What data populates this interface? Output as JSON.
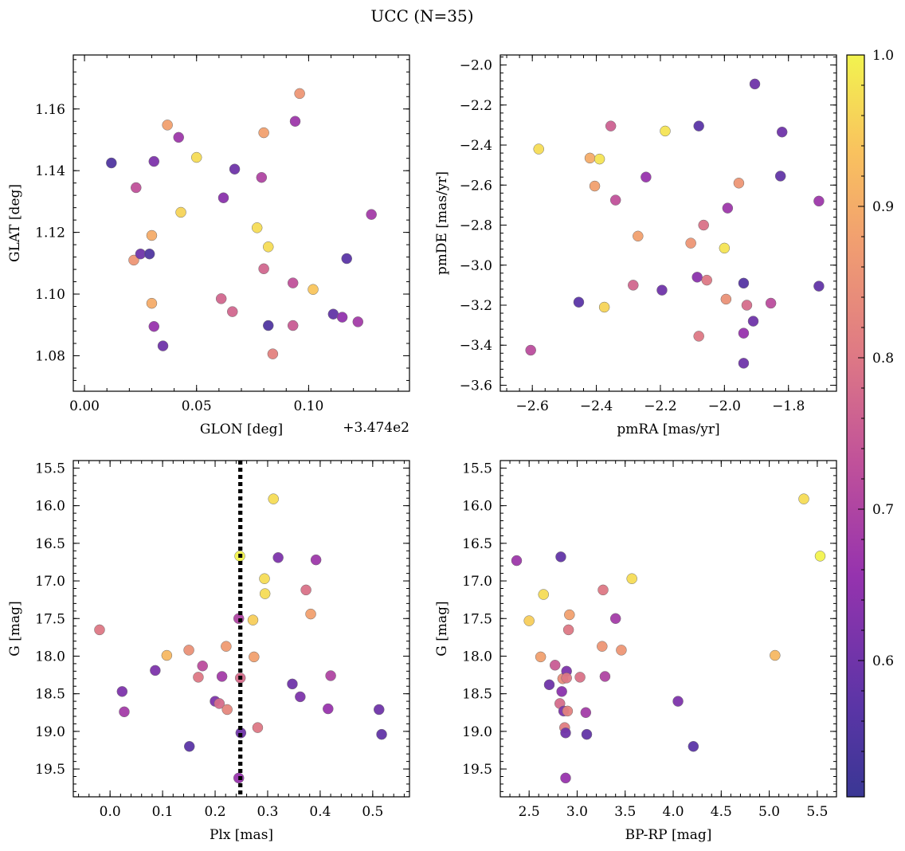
{
  "figure": {
    "suptitle": "UCC (N=35)"
  },
  "colorbar": {
    "cmap": "plasma",
    "range": [
      0.51,
      1.0
    ],
    "ticks": [
      0.6,
      0.7,
      0.8,
      0.9,
      1.0
    ],
    "tick_labels": [
      "0.6",
      "0.7",
      "0.8",
      "0.9",
      "1.0"
    ]
  },
  "chart_data": [
    {
      "type": "scatter",
      "panel": "top-left",
      "xlabel": "GLON [deg]",
      "ylabel": "GLAT [deg]",
      "x_offset_label": "+3.474e2",
      "xlim": [
        -0.005,
        0.145
      ],
      "ylim": [
        1.0685,
        1.1775
      ],
      "xticks": [
        0.0,
        0.05,
        0.1
      ],
      "xtick_labels": [
        "0.00",
        "0.05",
        "0.10"
      ],
      "yticks": [
        1.08,
        1.1,
        1.12,
        1.14,
        1.16
      ],
      "ytick_labels": [
        "1.08",
        "1.10",
        "1.12",
        "1.14",
        "1.16"
      ],
      "points": [
        {
          "x": 0.012,
          "y": 1.1425,
          "c": 0.55
        },
        {
          "x": 0.022,
          "y": 1.111,
          "c": 0.86
        },
        {
          "x": 0.023,
          "y": 1.1345,
          "c": 0.73
        },
        {
          "x": 0.025,
          "y": 1.113,
          "c": 0.6
        },
        {
          "x": 0.029,
          "y": 1.113,
          "c": 0.55
        },
        {
          "x": 0.03,
          "y": 1.119,
          "c": 0.9
        },
        {
          "x": 0.03,
          "y": 1.097,
          "c": 0.9
        },
        {
          "x": 0.031,
          "y": 1.143,
          "c": 0.62
        },
        {
          "x": 0.031,
          "y": 1.0895,
          "c": 0.66
        },
        {
          "x": 0.035,
          "y": 1.0832,
          "c": 0.6
        },
        {
          "x": 0.037,
          "y": 1.1548,
          "c": 0.88
        },
        {
          "x": 0.042,
          "y": 1.1508,
          "c": 0.67
        },
        {
          "x": 0.043,
          "y": 1.1265,
          "c": 0.96
        },
        {
          "x": 0.05,
          "y": 1.1443,
          "c": 0.97
        },
        {
          "x": 0.061,
          "y": 1.0985,
          "c": 0.77
        },
        {
          "x": 0.062,
          "y": 1.1312,
          "c": 0.64
        },
        {
          "x": 0.066,
          "y": 1.0943,
          "c": 0.77
        },
        {
          "x": 0.067,
          "y": 1.1405,
          "c": 0.6
        },
        {
          "x": 0.077,
          "y": 1.1215,
          "c": 0.97
        },
        {
          "x": 0.079,
          "y": 1.1378,
          "c": 0.7
        },
        {
          "x": 0.08,
          "y": 1.1523,
          "c": 0.88
        },
        {
          "x": 0.08,
          "y": 1.1082,
          "c": 0.77
        },
        {
          "x": 0.082,
          "y": 1.1153,
          "c": 0.97
        },
        {
          "x": 0.082,
          "y": 1.0898,
          "c": 0.55
        },
        {
          "x": 0.084,
          "y": 1.0806,
          "c": 0.82
        },
        {
          "x": 0.093,
          "y": 1.1036,
          "c": 0.73
        },
        {
          "x": 0.093,
          "y": 1.0898,
          "c": 0.75
        },
        {
          "x": 0.094,
          "y": 1.156,
          "c": 0.67
        },
        {
          "x": 0.096,
          "y": 1.165,
          "c": 0.86
        },
        {
          "x": 0.102,
          "y": 1.1015,
          "c": 0.94
        },
        {
          "x": 0.111,
          "y": 1.0935,
          "c": 0.58
        },
        {
          "x": 0.115,
          "y": 1.0925,
          "c": 0.65
        },
        {
          "x": 0.117,
          "y": 1.1115,
          "c": 0.57
        },
        {
          "x": 0.122,
          "y": 1.091,
          "c": 0.68
        },
        {
          "x": 0.128,
          "y": 1.1258,
          "c": 0.68
        }
      ]
    },
    {
      "type": "scatter",
      "panel": "top-right",
      "xlabel": "pmRA [mas/yr]",
      "ylabel": "pmDE [mas/yr]",
      "xlim": [
        -2.7,
        -1.65
      ],
      "ylim": [
        -3.63,
        -1.95
      ],
      "xticks": [
        -2.6,
        -2.4,
        -2.2,
        -2.0,
        -1.8
      ],
      "xtick_labels": [
        "−2.6",
        "−2.4",
        "−2.2",
        "−2.0",
        "−1.8"
      ],
      "yticks": [
        -3.6,
        -3.4,
        -3.2,
        -3.0,
        -2.8,
        -2.6,
        -2.4,
        -2.2,
        -2.0
      ],
      "ytick_labels": [
        "−3.6",
        "−3.4",
        "−3.2",
        "−3.0",
        "−2.8",
        "−2.6",
        "−2.4",
        "−2.2",
        "−2.0"
      ],
      "points": [
        {
          "x": -2.605,
          "y": -3.425,
          "c": 0.72
        },
        {
          "x": -2.58,
          "y": -2.42,
          "c": 0.97
        },
        {
          "x": -2.455,
          "y": -3.185,
          "c": 0.57
        },
        {
          "x": -2.42,
          "y": -2.465,
          "c": 0.9
        },
        {
          "x": -2.405,
          "y": -2.605,
          "c": 0.88
        },
        {
          "x": -2.39,
          "y": -2.47,
          "c": 0.98
        },
        {
          "x": -2.375,
          "y": -3.21,
          "c": 0.96
        },
        {
          "x": -2.355,
          "y": -2.305,
          "c": 0.76
        },
        {
          "x": -2.34,
          "y": -2.675,
          "c": 0.73
        },
        {
          "x": -2.285,
          "y": -3.1,
          "c": 0.77
        },
        {
          "x": -2.27,
          "y": -2.855,
          "c": 0.88
        },
        {
          "x": -2.245,
          "y": -2.56,
          "c": 0.66
        },
        {
          "x": -2.195,
          "y": -3.125,
          "c": 0.6
        },
        {
          "x": -2.185,
          "y": -2.33,
          "c": 0.98
        },
        {
          "x": -2.105,
          "y": -2.89,
          "c": 0.86
        },
        {
          "x": -2.085,
          "y": -3.06,
          "c": 0.64
        },
        {
          "x": -2.08,
          "y": -3.355,
          "c": 0.8
        },
        {
          "x": -2.08,
          "y": -2.305,
          "c": 0.57
        },
        {
          "x": -2.065,
          "y": -2.8,
          "c": 0.79
        },
        {
          "x": -2.055,
          "y": -3.075,
          "c": 0.8
        },
        {
          "x": -2.0,
          "y": -2.915,
          "c": 0.98
        },
        {
          "x": -1.995,
          "y": -3.17,
          "c": 0.85
        },
        {
          "x": -1.99,
          "y": -2.715,
          "c": 0.67
        },
        {
          "x": -1.955,
          "y": -2.59,
          "c": 0.86
        },
        {
          "x": -1.94,
          "y": -3.09,
          "c": 0.56
        },
        {
          "x": -1.94,
          "y": -3.34,
          "c": 0.66
        },
        {
          "x": -1.94,
          "y": -3.49,
          "c": 0.6
        },
        {
          "x": -1.93,
          "y": -3.2,
          "c": 0.78
        },
        {
          "x": -1.91,
          "y": -3.28,
          "c": 0.6
        },
        {
          "x": -1.905,
          "y": -2.095,
          "c": 0.6
        },
        {
          "x": -1.855,
          "y": -3.19,
          "c": 0.72
        },
        {
          "x": -1.825,
          "y": -2.555,
          "c": 0.58
        },
        {
          "x": -1.82,
          "y": -2.335,
          "c": 0.6
        },
        {
          "x": -1.705,
          "y": -2.68,
          "c": 0.67
        },
        {
          "x": -1.705,
          "y": -3.105,
          "c": 0.58
        }
      ]
    },
    {
      "type": "scatter",
      "panel": "bottom-left",
      "xlabel": "Plx [mas]",
      "ylabel": "G [mag]",
      "y_inverted": true,
      "xlim": [
        -0.07,
        0.57
      ],
      "ylim": [
        19.87,
        15.4
      ],
      "xticks": [
        0.0,
        0.1,
        0.2,
        0.3,
        0.4,
        0.5
      ],
      "xtick_labels": [
        "0.0",
        "0.1",
        "0.2",
        "0.3",
        "0.4",
        "0.5"
      ],
      "yticks": [
        15.5,
        16.0,
        16.5,
        17.0,
        17.5,
        18.0,
        18.5,
        19.0,
        19.5
      ],
      "ytick_labels": [
        "15.5",
        "16.0",
        "16.5",
        "17.0",
        "17.5",
        "18.0",
        "18.5",
        "19.0",
        "19.5"
      ],
      "vline": {
        "x": 0.248,
        "style": "dotted",
        "color": "#000000"
      },
      "points": [
        {
          "x": -0.02,
          "y": 17.65,
          "c": 0.8
        },
        {
          "x": 0.023,
          "y": 18.47,
          "c": 0.62
        },
        {
          "x": 0.027,
          "y": 18.74,
          "c": 0.68
        },
        {
          "x": 0.086,
          "y": 18.19,
          "c": 0.62
        },
        {
          "x": 0.108,
          "y": 17.99,
          "c": 0.92
        },
        {
          "x": 0.15,
          "y": 17.92,
          "c": 0.85
        },
        {
          "x": 0.151,
          "y": 19.2,
          "c": 0.57
        },
        {
          "x": 0.168,
          "y": 18.28,
          "c": 0.8
        },
        {
          "x": 0.176,
          "y": 18.13,
          "c": 0.72
        },
        {
          "x": 0.2,
          "y": 18.6,
          "c": 0.62
        },
        {
          "x": 0.208,
          "y": 18.63,
          "c": 0.78
        },
        {
          "x": 0.213,
          "y": 18.27,
          "c": 0.68
        },
        {
          "x": 0.221,
          "y": 17.87,
          "c": 0.87
        },
        {
          "x": 0.223,
          "y": 18.71,
          "c": 0.83
        },
        {
          "x": 0.245,
          "y": 17.5,
          "c": 0.7
        },
        {
          "x": 0.245,
          "y": 19.62,
          "c": 0.66
        },
        {
          "x": 0.247,
          "y": 16.67,
          "c": 1.0
        },
        {
          "x": 0.248,
          "y": 18.29,
          "c": 0.78
        },
        {
          "x": 0.249,
          "y": 19.02,
          "c": 0.6
        },
        {
          "x": 0.272,
          "y": 17.52,
          "c": 0.95
        },
        {
          "x": 0.274,
          "y": 18.01,
          "c": 0.88
        },
        {
          "x": 0.281,
          "y": 18.95,
          "c": 0.8
        },
        {
          "x": 0.294,
          "y": 16.97,
          "c": 0.97
        },
        {
          "x": 0.295,
          "y": 17.17,
          "c": 0.97
        },
        {
          "x": 0.311,
          "y": 15.91,
          "c": 0.97
        },
        {
          "x": 0.32,
          "y": 16.69,
          "c": 0.62
        },
        {
          "x": 0.347,
          "y": 18.37,
          "c": 0.6
        },
        {
          "x": 0.362,
          "y": 18.54,
          "c": 0.62
        },
        {
          "x": 0.373,
          "y": 17.12,
          "c": 0.79
        },
        {
          "x": 0.382,
          "y": 17.44,
          "c": 0.88
        },
        {
          "x": 0.392,
          "y": 16.72,
          "c": 0.67
        },
        {
          "x": 0.415,
          "y": 18.7,
          "c": 0.66
        },
        {
          "x": 0.42,
          "y": 18.26,
          "c": 0.7
        },
        {
          "x": 0.512,
          "y": 18.71,
          "c": 0.6
        },
        {
          "x": 0.517,
          "y": 19.04,
          "c": 0.58
        }
      ]
    },
    {
      "type": "scatter",
      "panel": "bottom-right",
      "xlabel": "BP-RP [mag]",
      "ylabel": "G [mag]",
      "y_inverted": true,
      "xlim": [
        2.2,
        5.7
      ],
      "ylim": [
        19.87,
        15.4
      ],
      "xticks": [
        2.5,
        3.0,
        3.5,
        4.0,
        4.5,
        5.0,
        5.5
      ],
      "xtick_labels": [
        "2.5",
        "3.0",
        "3.5",
        "4.0",
        "4.5",
        "5.0",
        "5.5"
      ],
      "yticks": [
        15.5,
        16.0,
        16.5,
        17.0,
        17.5,
        18.0,
        18.5,
        19.0,
        19.5
      ],
      "ytick_labels": [
        "15.5",
        "16.0",
        "16.5",
        "17.0",
        "17.5",
        "18.0",
        "18.5",
        "19.0",
        "19.5"
      ],
      "points": [
        {
          "x": 2.37,
          "y": 16.73,
          "c": 0.67
        },
        {
          "x": 2.5,
          "y": 17.53,
          "c": 0.95
        },
        {
          "x": 2.62,
          "y": 18.01,
          "c": 0.88
        },
        {
          "x": 2.65,
          "y": 17.18,
          "c": 0.97
        },
        {
          "x": 2.71,
          "y": 18.38,
          "c": 0.6
        },
        {
          "x": 2.77,
          "y": 18.12,
          "c": 0.75
        },
        {
          "x": 2.82,
          "y": 18.63,
          "c": 0.78
        },
        {
          "x": 2.83,
          "y": 16.68,
          "c": 0.58
        },
        {
          "x": 2.84,
          "y": 18.47,
          "c": 0.64
        },
        {
          "x": 2.85,
          "y": 18.3,
          "c": 0.84
        },
        {
          "x": 2.86,
          "y": 18.73,
          "c": 0.62
        },
        {
          "x": 2.87,
          "y": 18.95,
          "c": 0.81
        },
        {
          "x": 2.88,
          "y": 19.02,
          "c": 0.6
        },
        {
          "x": 2.88,
          "y": 19.62,
          "c": 0.66
        },
        {
          "x": 2.89,
          "y": 18.2,
          "c": 0.62
        },
        {
          "x": 2.89,
          "y": 18.29,
          "c": 0.8
        },
        {
          "x": 2.9,
          "y": 18.73,
          "c": 0.82
        },
        {
          "x": 2.91,
          "y": 17.65,
          "c": 0.8
        },
        {
          "x": 2.92,
          "y": 17.45,
          "c": 0.88
        },
        {
          "x": 3.03,
          "y": 18.28,
          "c": 0.79
        },
        {
          "x": 3.09,
          "y": 18.75,
          "c": 0.68
        },
        {
          "x": 3.1,
          "y": 19.04,
          "c": 0.58
        },
        {
          "x": 3.26,
          "y": 17.87,
          "c": 0.86
        },
        {
          "x": 3.27,
          "y": 17.12,
          "c": 0.8
        },
        {
          "x": 3.29,
          "y": 18.27,
          "c": 0.7
        },
        {
          "x": 3.4,
          "y": 17.5,
          "c": 0.68
        },
        {
          "x": 3.46,
          "y": 17.92,
          "c": 0.86
        },
        {
          "x": 3.57,
          "y": 16.97,
          "c": 0.97
        },
        {
          "x": 4.05,
          "y": 18.6,
          "c": 0.62
        },
        {
          "x": 4.21,
          "y": 19.2,
          "c": 0.57
        },
        {
          "x": 5.06,
          "y": 17.99,
          "c": 0.92
        },
        {
          "x": 5.36,
          "y": 15.91,
          "c": 0.97
        },
        {
          "x": 5.53,
          "y": 16.67,
          "c": 1.0
        }
      ]
    }
  ]
}
